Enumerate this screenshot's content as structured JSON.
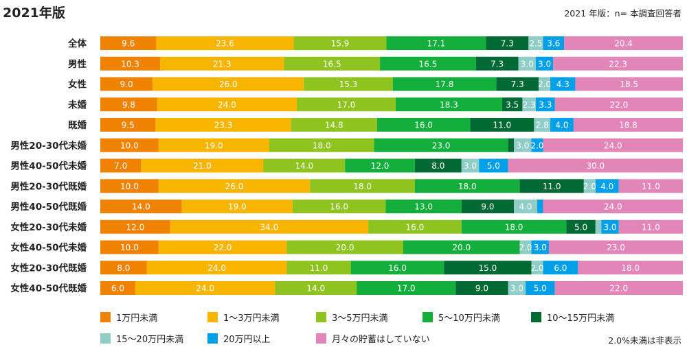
{
  "header": {
    "title": "2021年版",
    "note": "2021 年版：n= 本調査回答者"
  },
  "footnote": "2.0%未満は非表示",
  "colors": [
    "#ef8200",
    "#f8b500",
    "#8fc31f",
    "#13ae3c",
    "#006934",
    "#8fcdc6",
    "#00a0e9",
    "#e285b8"
  ],
  "chart_data": {
    "type": "bar",
    "orientation": "horizontal-stacked-100",
    "xlim": [
      0,
      100
    ],
    "categories": [
      "全体",
      "男性",
      "女性",
      "未婚",
      "既婚",
      "男性20-30代未婚",
      "男性40-50代未婚",
      "男性20-30代既婚",
      "男性40-50代既婚",
      "女性20-30代未婚",
      "女性40-50代未婚",
      "女性20-30代既婚",
      "女性40-50代既婚"
    ],
    "series": [
      {
        "name": "1万円未満",
        "values": [
          9.6,
          10.3,
          9.0,
          9.8,
          9.5,
          10.0,
          7.0,
          10.0,
          14.0,
          12.0,
          10.0,
          8.0,
          6.0
        ]
      },
      {
        "name": "1～3万円未満",
        "values": [
          23.6,
          21.3,
          26.0,
          24.0,
          23.3,
          19.0,
          21.0,
          26.0,
          19.0,
          34.0,
          22.0,
          24.0,
          24.0
        ]
      },
      {
        "name": "3～5万円未満",
        "values": [
          15.9,
          16.5,
          15.3,
          17.0,
          14.8,
          18.0,
          14.0,
          18.0,
          16.0,
          16.0,
          20.0,
          11.0,
          14.0
        ]
      },
      {
        "name": "5～10万円未満",
        "values": [
          17.1,
          16.5,
          17.8,
          18.3,
          16.0,
          23.0,
          12.0,
          18.0,
          13.0,
          18.0,
          20.0,
          16.0,
          17.0
        ]
      },
      {
        "name": "10～15万円未満",
        "values": [
          7.3,
          7.3,
          7.3,
          3.5,
          11.0,
          1.0,
          8.0,
          11.0,
          9.0,
          5.0,
          0,
          15.0,
          9.0
        ]
      },
      {
        "name": "15～20万円未満",
        "values": [
          2.5,
          3.0,
          2.0,
          2.3,
          2.8,
          3.0,
          3.0,
          2.0,
          4.0,
          1.0,
          2.0,
          2.0,
          3.0
        ]
      },
      {
        "name": "20万円以上",
        "values": [
          3.6,
          3.0,
          4.3,
          3.3,
          4.0,
          2.0,
          5.0,
          4.0,
          1.0,
          3.0,
          3.0,
          6.0,
          5.0
        ]
      },
      {
        "name": "月々の貯蓄はしていない",
        "values": [
          20.4,
          22.3,
          18.5,
          22.0,
          18.8,
          24.0,
          30.0,
          11.0,
          24.0,
          11.0,
          23.0,
          18.0,
          22.0
        ]
      }
    ],
    "labels": [
      [
        "9.6",
        "23.6",
        "15.9",
        "17.1",
        "7.3",
        "2.5",
        "3.6",
        "20.4"
      ],
      [
        "10.3",
        "21.3",
        "16.5",
        "16.5",
        "7.3",
        "3.0",
        "3.0",
        "22.3"
      ],
      [
        "9.0",
        "26.0",
        "15.3",
        "17.8",
        "7.3",
        "2.0",
        "4.3",
        "18.5"
      ],
      [
        "9.8",
        "24.0",
        "17.0",
        "18.3",
        "3.5",
        "2.3",
        "3.3",
        "22.0"
      ],
      [
        "9.5",
        "23.3",
        "14.8",
        "16.0",
        "11.0",
        "2.8",
        "4.0",
        "18.8"
      ],
      [
        "10.0",
        "19.0",
        "18.0",
        "23.0",
        "",
        "3.0",
        "2.0",
        "24.0"
      ],
      [
        "7.0",
        "21.0",
        "14.0",
        "12.0",
        "8.0",
        "3.0",
        "5.0",
        "30.0"
      ],
      [
        "10.0",
        "26.0",
        "18.0",
        "18.0",
        "11.0",
        "2.0",
        "4.0",
        "11.0"
      ],
      [
        "14.0",
        "19.0",
        "16.0",
        "13.0",
        "9.0",
        "4.0",
        "",
        "24.0"
      ],
      [
        "12.0",
        "34.0",
        "16.0",
        "18.0",
        "5.0",
        "",
        "3.0",
        "11.0"
      ],
      [
        "10.0",
        "22.0",
        "20.0",
        "20.0",
        "",
        "2.0",
        "3.0",
        "23.0"
      ],
      [
        "8.0",
        "24.0",
        "11.0",
        "16.0",
        "15.0",
        "2.0",
        "6.0",
        "18.0"
      ],
      [
        "6.0",
        "24.0",
        "14.0",
        "17.0",
        "9.0",
        "3.0",
        "5.0",
        "22.0"
      ]
    ],
    "legend_position": "bottom"
  }
}
